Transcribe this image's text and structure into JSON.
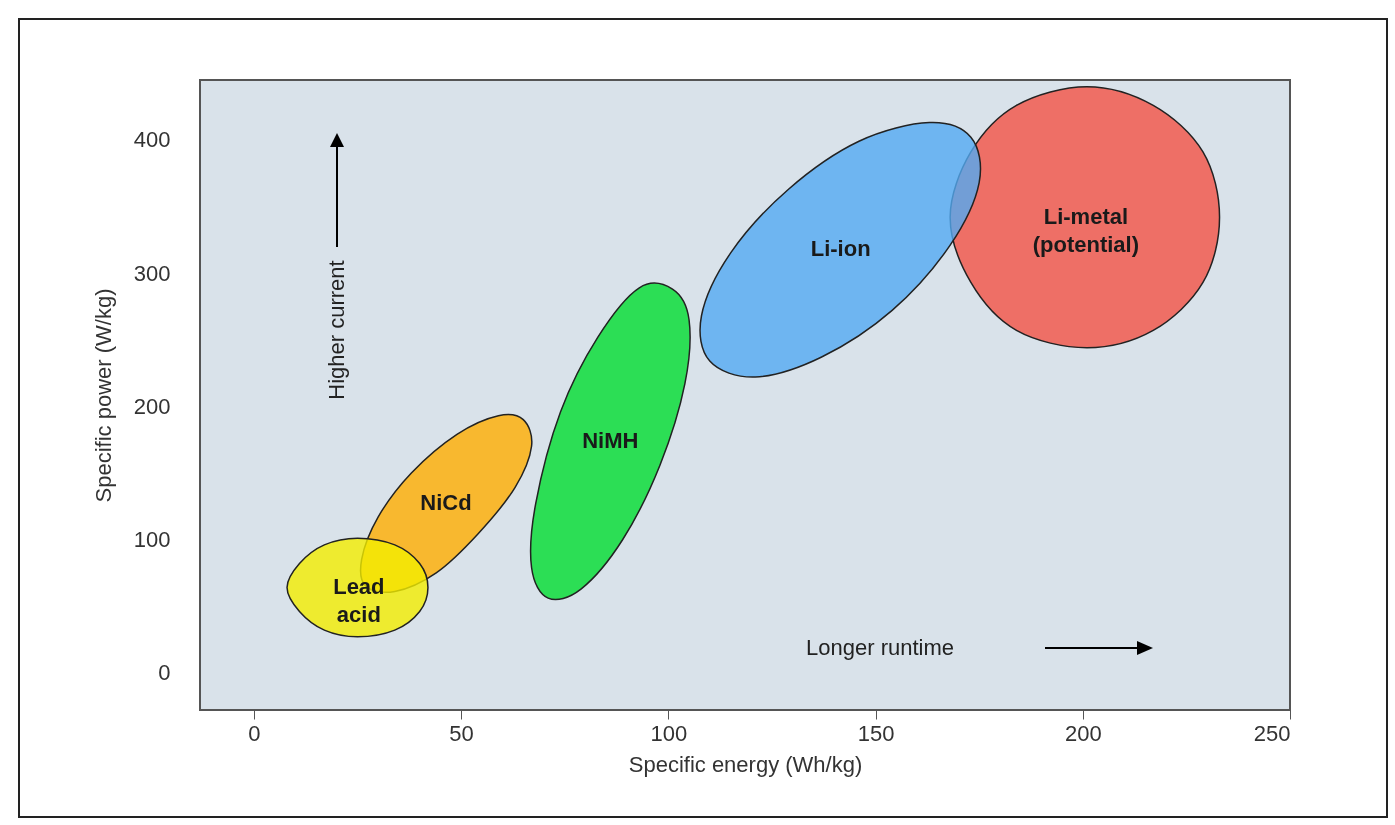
{
  "chart_data": {
    "type": "area",
    "xlabel": "Specific energy (Wh/kg)",
    "ylabel": "Specific power (W/kg)",
    "xlim": [
      -13,
      250
    ],
    "xticks": [
      0,
      50,
      100,
      150,
      200,
      250
    ],
    "ylim": [
      -28,
      445
    ],
    "yticks": [
      0,
      100,
      200,
      300,
      400
    ],
    "grid": false,
    "marker": "none",
    "annotations": [
      "Higher current",
      "Longer runtime"
    ],
    "series": [
      {
        "name": "Lead acid",
        "color": "#f2ee00",
        "x": [
          42,
          40,
          34,
          25,
          17,
          11,
          8,
          11,
          17,
          25,
          34,
          40
        ],
        "values": [
          64,
          82,
          96,
          101,
          96,
          82,
          64,
          46,
          32,
          27,
          32,
          46
        ]
      },
      {
        "name": "NiCd",
        "color": "#ffae00",
        "x": [
          65,
          67,
          63,
          54,
          44,
          34,
          27,
          26,
          30,
          38,
          49,
          59
        ],
        "values": [
          190,
          170,
          139,
          104,
          75,
          61,
          65,
          85,
          117,
          150,
          179,
          193
        ]
      },
      {
        "name": "NiMH",
        "color": "#00dd30",
        "x": [
          101,
          105,
          104,
          98,
          89,
          79,
          71,
          67,
          68,
          74,
          83,
          93
        ],
        "values": [
          288,
          265,
          217,
          156,
          100,
          63,
          56,
          79,
          127,
          196,
          252,
          289
        ]
      },
      {
        "name": "Li-ion",
        "color": "#52aaf2",
        "x": [
          173,
          175,
          168,
          154,
          137,
          121,
          110,
          108,
          115,
          129,
          146,
          163
        ],
        "values": [
          402,
          368,
          321,
          272,
          237,
          222,
          234,
          268,
          315,
          363,
          399,
          413
        ]
      },
      {
        "name": "Li-metal (potential)",
        "color": "#f25245",
        "x": [
          233,
          229,
          217,
          201,
          184,
          173,
          168,
          173,
          184,
          201,
          217,
          229
        ],
        "values": [
          342,
          391,
          426,
          440,
          426,
          391,
          342,
          293,
          257,
          244,
          257,
          293
        ]
      }
    ]
  }
}
